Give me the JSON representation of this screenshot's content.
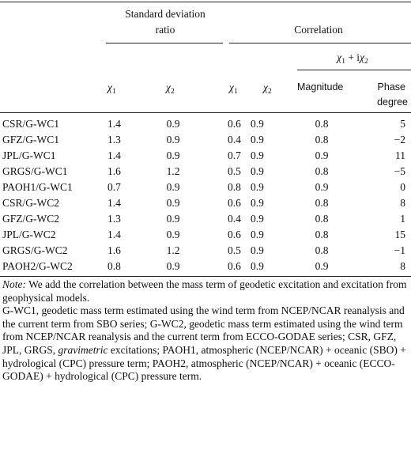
{
  "header": {
    "group1": [
      "Standard deviation",
      "ratio"
    ],
    "group2": "Correlation",
    "group3": {
      "chi1": "χ",
      "plus": " + i",
      "chi2": "χ",
      "sub1": "1",
      "sub2": "2"
    },
    "columns": {
      "sd_chi1": {
        "sym": "χ",
        "sub": "1"
      },
      "sd_chi2": {
        "sym": "χ",
        "sub": "2"
      },
      "corr_chi1": {
        "sym": "χ",
        "sub": "1"
      },
      "corr_chi2": {
        "sym": "χ",
        "sub": "2"
      },
      "magnitude": "Magnitude",
      "phase": [
        "Phase",
        "degree"
      ]
    }
  },
  "rows": [
    {
      "label": "CSR/G-WC1",
      "sd1": "1.4",
      "sd2": "0.9",
      "c1": "0.6",
      "c2": "0.9",
      "mag": "0.8",
      "phase": "5"
    },
    {
      "label": "GFZ/G-WC1",
      "sd1": "1.3",
      "sd2": "0.9",
      "c1": "0.4",
      "c2": "0.9",
      "mag": "0.8",
      "phase": "−2"
    },
    {
      "label": "JPL/G-WC1",
      "sd1": "1.4",
      "sd2": "0.9",
      "c1": "0.7",
      "c2": "0.9",
      "mag": "0.9",
      "phase": "11"
    },
    {
      "label": "GRGS/G-WC1",
      "sd1": "1.6",
      "sd2": "1.2",
      "c1": "0.5",
      "c2": "0.9",
      "mag": "0.8",
      "phase": "−5"
    },
    {
      "label": "PAOH1/G-WC1",
      "sd1": "0.7",
      "sd2": "0.9",
      "c1": "0.8",
      "c2": "0.9",
      "mag": "0.9",
      "phase": "0"
    },
    {
      "label": "CSR/G-WC2",
      "sd1": "1.4",
      "sd2": "0.9",
      "c1": "0.6",
      "c2": "0.9",
      "mag": "0.8",
      "phase": "8"
    },
    {
      "label": "GFZ/G-WC2",
      "sd1": "1.3",
      "sd2": "0.9",
      "c1": "0.4",
      "c2": "0.9",
      "mag": "0.8",
      "phase": "1"
    },
    {
      "label": "JPL/G-WC2",
      "sd1": "1.4",
      "sd2": "0.9",
      "c1": "0.6",
      "c2": "0.9",
      "mag": "0.8",
      "phase": "15"
    },
    {
      "label": "GRGS/G-WC2",
      "sd1": "1.6",
      "sd2": "1.2",
      "c1": "0.5",
      "c2": "0.9",
      "mag": "0.8",
      "phase": "−1"
    },
    {
      "label": "PAOH2/G-WC2",
      "sd1": "0.8",
      "sd2": "0.9",
      "c1": "0.6",
      "c2": "0.9",
      "mag": "0.9",
      "phase": "8"
    }
  ],
  "notes": {
    "note_label": "Note:",
    "note_text": " We add the correlation between the mass term of geodetic excitation and excitation from geophysical models.",
    "definitions_a": "G-WC1, geodetic mass term estimated using the wind term from NCEP/NCAR reanalysis and the current term from SBO series; G-WC2, geodetic mass term estimated using the wind term from NCEP/NCAR reanalysis and the current term from ECCO-GODAE series; CSR, GFZ, JPL, GRGS, ",
    "definitions_gravimetric": "gravimetric",
    "definitions_b": " excitations; PAOH1, atmospheric (NCEP/NCAR) + oceanic (SBO) + hydrological (CPC) pressure term; PAOH2, atmospheric (NCEP/NCAR) + oceanic (ECCO-GODAE) + hydrological (CPC) pressure term."
  }
}
